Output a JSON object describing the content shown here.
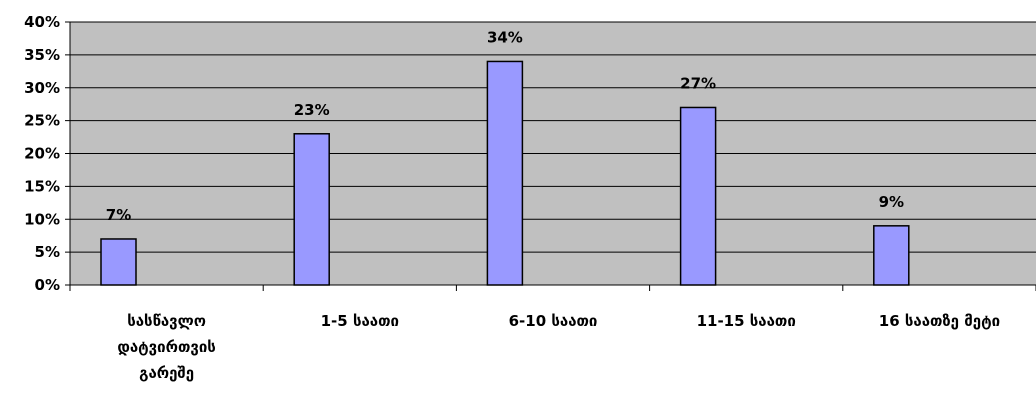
{
  "chart_data": {
    "type": "bar",
    "categories": [
      [
        "სასწავლო",
        "დატვირთვის",
        "გარეშე"
      ],
      [
        "1-5 საათი"
      ],
      [
        "6-10 საათი"
      ],
      [
        "11-15 საათი"
      ],
      [
        "16 საათზე მეტი"
      ]
    ],
    "values": [
      7,
      23,
      34,
      27,
      9
    ],
    "data_labels": [
      "7%",
      "23%",
      "34%",
      "27%",
      "9%"
    ],
    "yticks": [
      "0%",
      "5%",
      "10%",
      "15%",
      "20%",
      "25%",
      "30%",
      "35%",
      "40%"
    ],
    "ylim": [
      0,
      40
    ],
    "grid": true,
    "legend": "none",
    "colors": {
      "bar_fill": "#9999ff",
      "bar_stroke": "#000000",
      "plot_background": "#c0c0c0",
      "gridline": "#000000"
    }
  }
}
